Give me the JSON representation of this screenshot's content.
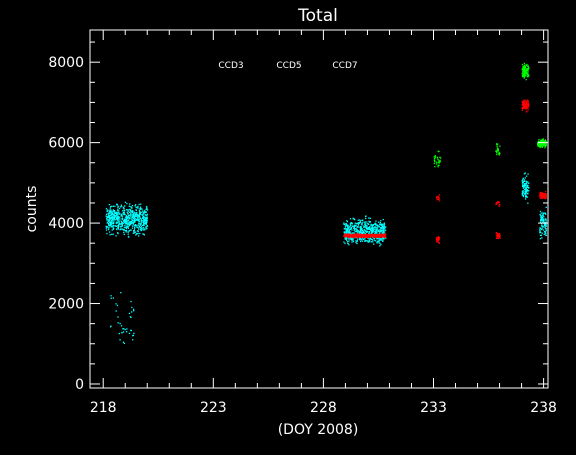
{
  "colors": {
    "background": "#000000",
    "axes": "#ffffff",
    "ccd3": "#00ffff",
    "ccd5": "#00ff00",
    "ccd7": "#ff0000"
  },
  "chart_data": {
    "type": "scatter",
    "title": "Total",
    "xlabel": "(DOY 2008)",
    "ylabel": "counts",
    "xlim": [
      217.4,
      238.2
    ],
    "ylim": [
      -100,
      8800
    ],
    "xticks": [
      218,
      223,
      228,
      233,
      238
    ],
    "yticks": [
      0,
      2000,
      4000,
      6000,
      8000
    ],
    "xtick_labels": [
      "218",
      "223",
      "228",
      "233",
      "238"
    ],
    "ytick_labels": [
      "0",
      "2000",
      "4000",
      "6000",
      "8000"
    ],
    "grid": false,
    "legend_placement": "top-center",
    "series": [
      {
        "name": "CCD3",
        "color": "#00ffff",
        "clusters": [
          {
            "x_range": [
              218.1,
              220.0
            ],
            "y_center": 4100,
            "y_spread": 500,
            "count": 650
          },
          {
            "x_range": [
              218.3,
              219.4
            ],
            "y_center": 1500,
            "y_spread": 1200,
            "count": 40
          },
          {
            "x_range": [
              228.9,
              230.8
            ],
            "y_center": 3800,
            "y_spread": 450,
            "count": 600
          },
          {
            "x_range": [
              237.0,
              237.3
            ],
            "y_center": 4900,
            "y_spread": 450,
            "count": 100
          },
          {
            "x_range": [
              237.8,
              238.1
            ],
            "y_center": 4000,
            "y_spread": 500,
            "count": 100
          }
        ]
      },
      {
        "name": "CCD5",
        "color": "#00ff00",
        "clusters": [
          {
            "x_range": [
              233.0,
              233.3
            ],
            "y_center": 5600,
            "y_spread": 250,
            "count": 30
          },
          {
            "x_range": [
              235.8,
              236.0
            ],
            "y_center": 5800,
            "y_spread": 250,
            "count": 25
          },
          {
            "x_range": [
              237.0,
              237.3
            ],
            "y_center": 7800,
            "y_spread": 250,
            "count": 110
          },
          {
            "x_range": [
              237.7,
              238.1
            ],
            "y_center": 6000,
            "y_spread": 150,
            "count": 110
          }
        ]
      },
      {
        "name": "CCD7",
        "color": "#ff0000",
        "clusters": [
          {
            "x_range": [
              228.9,
              230.8
            ],
            "y_center": 3700,
            "y_spread": 60,
            "count": 420
          },
          {
            "x_range": [
              233.1,
              233.25
            ],
            "y_center": 3600,
            "y_spread": 150,
            "count": 30
          },
          {
            "x_range": [
              233.1,
              233.25
            ],
            "y_center": 4650,
            "y_spread": 120,
            "count": 12
          },
          {
            "x_range": [
              235.8,
              236.0
            ],
            "y_center": 3700,
            "y_spread": 150,
            "count": 30
          },
          {
            "x_range": [
              235.8,
              236.0
            ],
            "y_center": 4500,
            "y_spread": 120,
            "count": 12
          },
          {
            "x_range": [
              237.0,
              237.3
            ],
            "y_center": 6950,
            "y_spread": 200,
            "count": 90
          },
          {
            "x_range": [
              237.8,
              238.1
            ],
            "y_center": 4700,
            "y_spread": 120,
            "count": 90
          }
        ]
      }
    ]
  }
}
